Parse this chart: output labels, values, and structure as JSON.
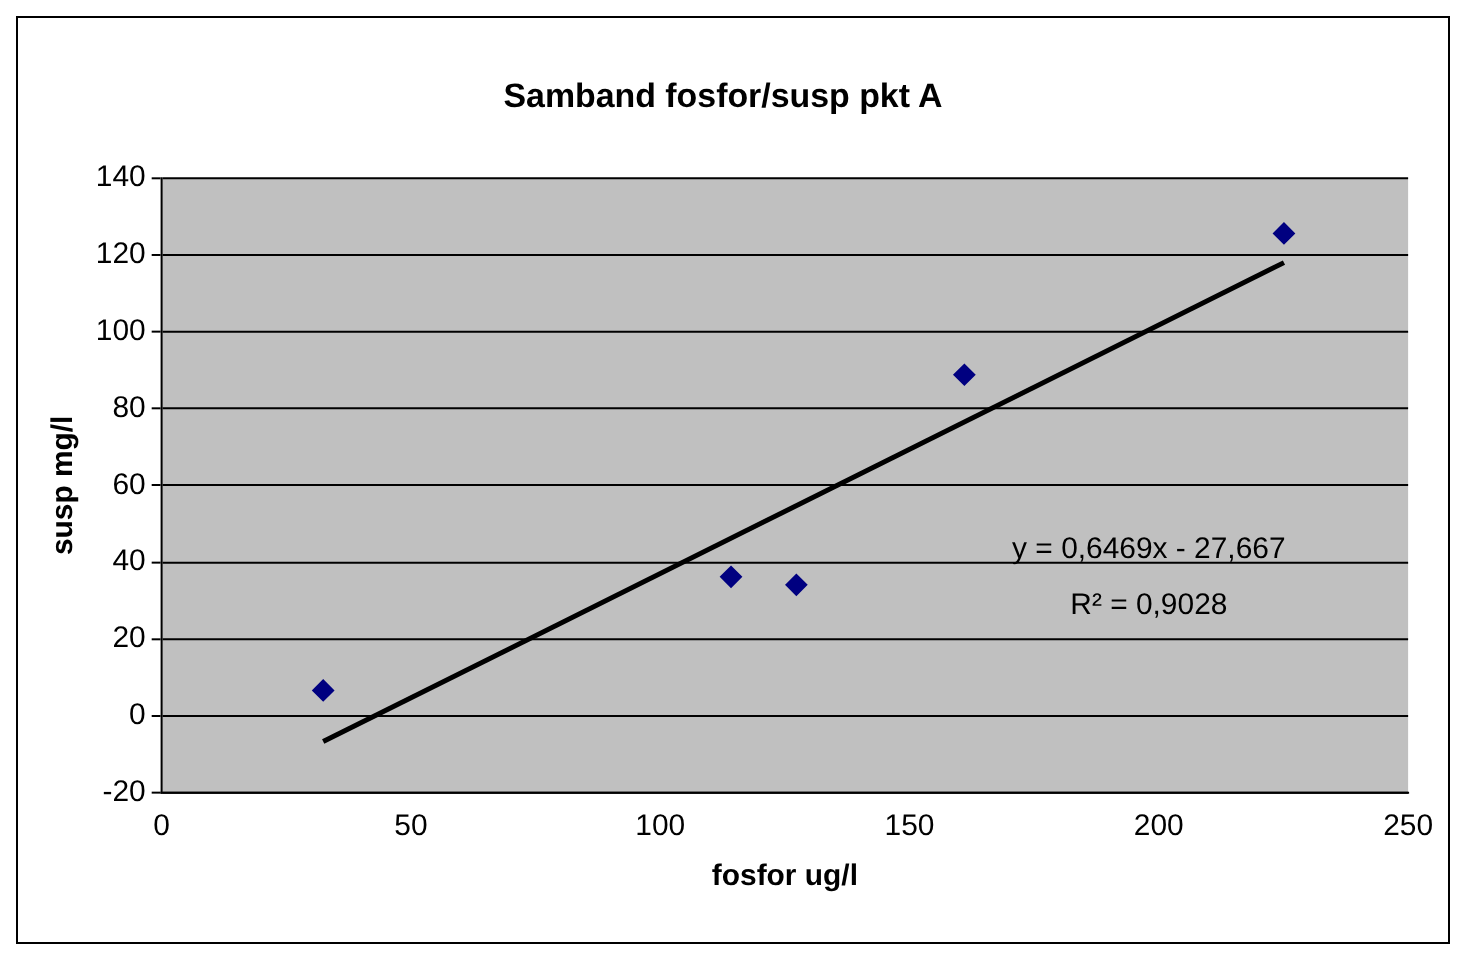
{
  "chart_data": {
    "type": "scatter",
    "title": "Samband fosfor/susp pkt A",
    "xlabel": "fosfor ug/l",
    "ylabel": "susp mg/l",
    "series": [
      {
        "color": "#000080",
        "marker": "diamond",
        "x": [
          32.4,
          114.2,
          127.3,
          161,
          225.1
        ],
        "values": [
          6.6,
          36.2,
          34.1,
          88.8,
          125.6
        ]
      },
      {
        "type": "line",
        "color": "#000000",
        "marker": "none",
        "line_style": "solid",
        "x": [
          32.4,
          225.1
        ],
        "values": [
          -6.7,
          118
        ]
      }
    ],
    "annotations": [
      "y = 0,6469x - 27,667",
      "R² = 0,9028"
    ],
    "xlim": [
      0,
      250
    ],
    "xticks": [
      0,
      50,
      100,
      150,
      200,
      250
    ],
    "ylim": [
      -20,
      140
    ],
    "yticks": [
      -20,
      0,
      20,
      40,
      60,
      80,
      100,
      120,
      140
    ],
    "grid": "y",
    "legend": false
  }
}
